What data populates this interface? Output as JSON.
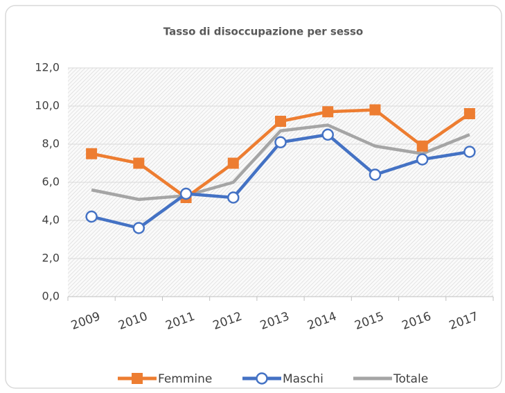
{
  "chart_data": {
    "type": "line",
    "title": "Tasso di disoccupazione per sesso",
    "categories": [
      "2009",
      "2010",
      "2011",
      "2012",
      "2013",
      "2014",
      "2015",
      "2016",
      "2017"
    ],
    "series": [
      {
        "name": "Femmine",
        "color": "#ed7d31",
        "marker": "square",
        "values": [
          7.5,
          7.0,
          5.2,
          7.0,
          9.2,
          9.7,
          9.8,
          7.9,
          9.6
        ]
      },
      {
        "name": "Maschi",
        "color": "#4472c4",
        "marker": "circle",
        "values": [
          4.2,
          3.6,
          5.4,
          5.2,
          8.1,
          8.5,
          6.4,
          7.2,
          7.6
        ]
      },
      {
        "name": "Totale",
        "color": "#a5a5a5",
        "marker": "none",
        "values": [
          5.6,
          5.1,
          5.3,
          6.0,
          8.7,
          9.0,
          7.9,
          7.5,
          8.5
        ]
      }
    ],
    "ylim": [
      0,
      12
    ],
    "yticks": [
      {
        "value": 0,
        "label": "0,0"
      },
      {
        "value": 2,
        "label": "2,0"
      },
      {
        "value": 4,
        "label": "4,0"
      },
      {
        "value": 6,
        "label": "6,0"
      },
      {
        "value": 8,
        "label": "8,0"
      },
      {
        "value": 10,
        "label": "10,0"
      },
      {
        "value": 12,
        "label": "12,0"
      }
    ],
    "grid": true,
    "legend": "bottom"
  }
}
